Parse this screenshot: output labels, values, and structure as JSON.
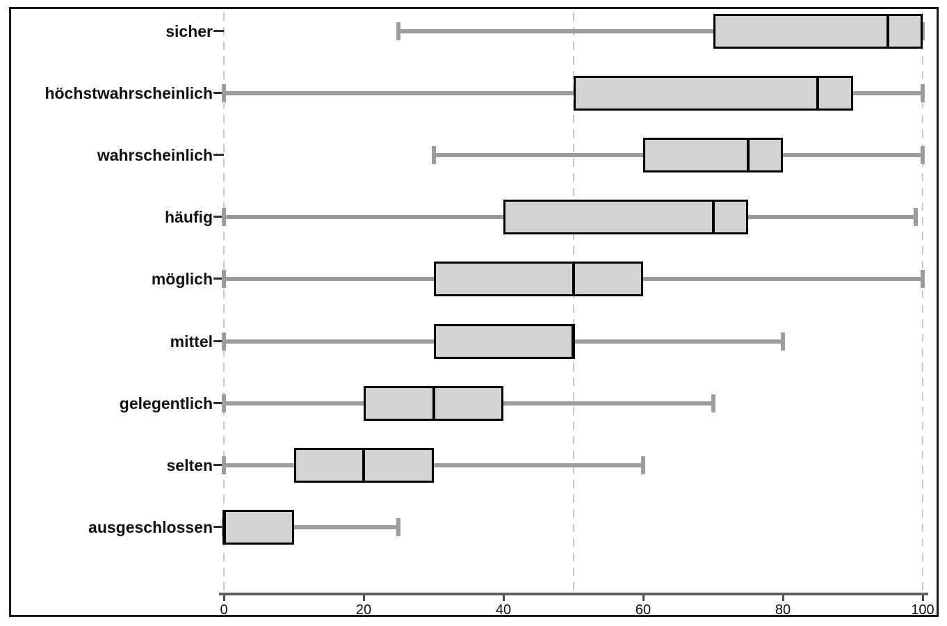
{
  "figure": {
    "background": "#ffffff",
    "border_color": "#1a1a1a"
  },
  "chart_data": {
    "type": "boxplot",
    "orientation": "horizontal",
    "title": "",
    "xlabel": "",
    "ylabel": "",
    "xlim": [
      0,
      100
    ],
    "xticks": [
      0,
      20,
      40,
      60,
      80,
      100
    ],
    "gridlines": {
      "values": [
        0,
        50,
        100
      ],
      "style": "dashed"
    },
    "legend": "none",
    "categories": [
      "sicher",
      "höchstwahrscheinlich",
      "wahrscheinlich",
      "häufig",
      "möglich",
      "mittel",
      "gelegentlich",
      "selten",
      "ausgeschlossen"
    ],
    "values": [
      {
        "label": "sicher",
        "min": 25,
        "q1": 70,
        "median": 95,
        "q3": 100,
        "max": 100
      },
      {
        "label": "höchstwahrscheinlich",
        "min": 0,
        "q1": 50,
        "median": 85,
        "q3": 90,
        "max": 100
      },
      {
        "label": "wahrscheinlich",
        "min": 30,
        "q1": 60,
        "median": 75,
        "q3": 80,
        "max": 100
      },
      {
        "label": "häufig",
        "min": 0,
        "q1": 40,
        "median": 70,
        "q3": 75,
        "max": 99
      },
      {
        "label": "möglich",
        "min": 0,
        "q1": 30,
        "median": 50,
        "q3": 60,
        "max": 100
      },
      {
        "label": "mittel",
        "min": 0,
        "q1": 30,
        "median": 50,
        "q3": 50,
        "max": 80
      },
      {
        "label": "gelegentlich",
        "min": 0,
        "q1": 20,
        "median": 30,
        "q3": 40,
        "max": 70
      },
      {
        "label": "selten",
        "min": 0,
        "q1": 10,
        "median": 20,
        "q3": 30,
        "max": 60
      },
      {
        "label": "ausgeschlossen",
        "min": 0,
        "q1": 0,
        "median": 0,
        "q3": 10,
        "max": 25
      }
    ],
    "colors": {
      "box_fill": "#d2d2d2",
      "box_border": "#000000",
      "median": "#000000",
      "whisker": "#9c9c9c",
      "gridline": "#c8c8c8",
      "axis_line": "#5f5f5f",
      "tick": "#4a4a4a",
      "label_text": "#111111"
    }
  }
}
